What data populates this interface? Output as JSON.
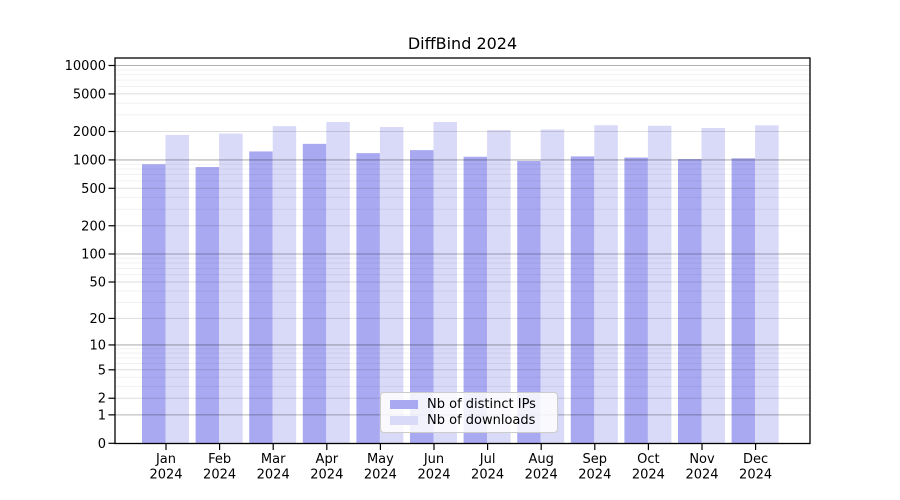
{
  "title": "DiffBind 2024",
  "chart_data": {
    "type": "bar",
    "title": "DiffBind 2024",
    "x_categories_line1": [
      "Jan",
      "Feb",
      "Mar",
      "Apr",
      "May",
      "Jun",
      "Jul",
      "Aug",
      "Sep",
      "Oct",
      "Nov",
      "Dec"
    ],
    "x_categories_line2": "2024",
    "series": [
      {
        "name": "Nb of distinct IPs",
        "color": "#a9a9f2",
        "values": [
          900,
          840,
          1230,
          1480,
          1180,
          1270,
          1080,
          975,
          1090,
          1060,
          1020,
          1040
        ]
      },
      {
        "name": "Nb of downloads",
        "color": "#d9d9f8",
        "values": [
          1840,
          1900,
          2280,
          2520,
          2230,
          2520,
          2070,
          2100,
          2330,
          2300,
          2180,
          2320
        ]
      }
    ],
    "y_ticks": [
      0,
      1,
      2,
      5,
      10,
      20,
      50,
      100,
      200,
      500,
      1000,
      2000,
      5000,
      10000
    ],
    "y_scale": "log10(value+1)",
    "ylim": [
      0,
      12600
    ],
    "grid": true,
    "legend_position": "lower center"
  }
}
